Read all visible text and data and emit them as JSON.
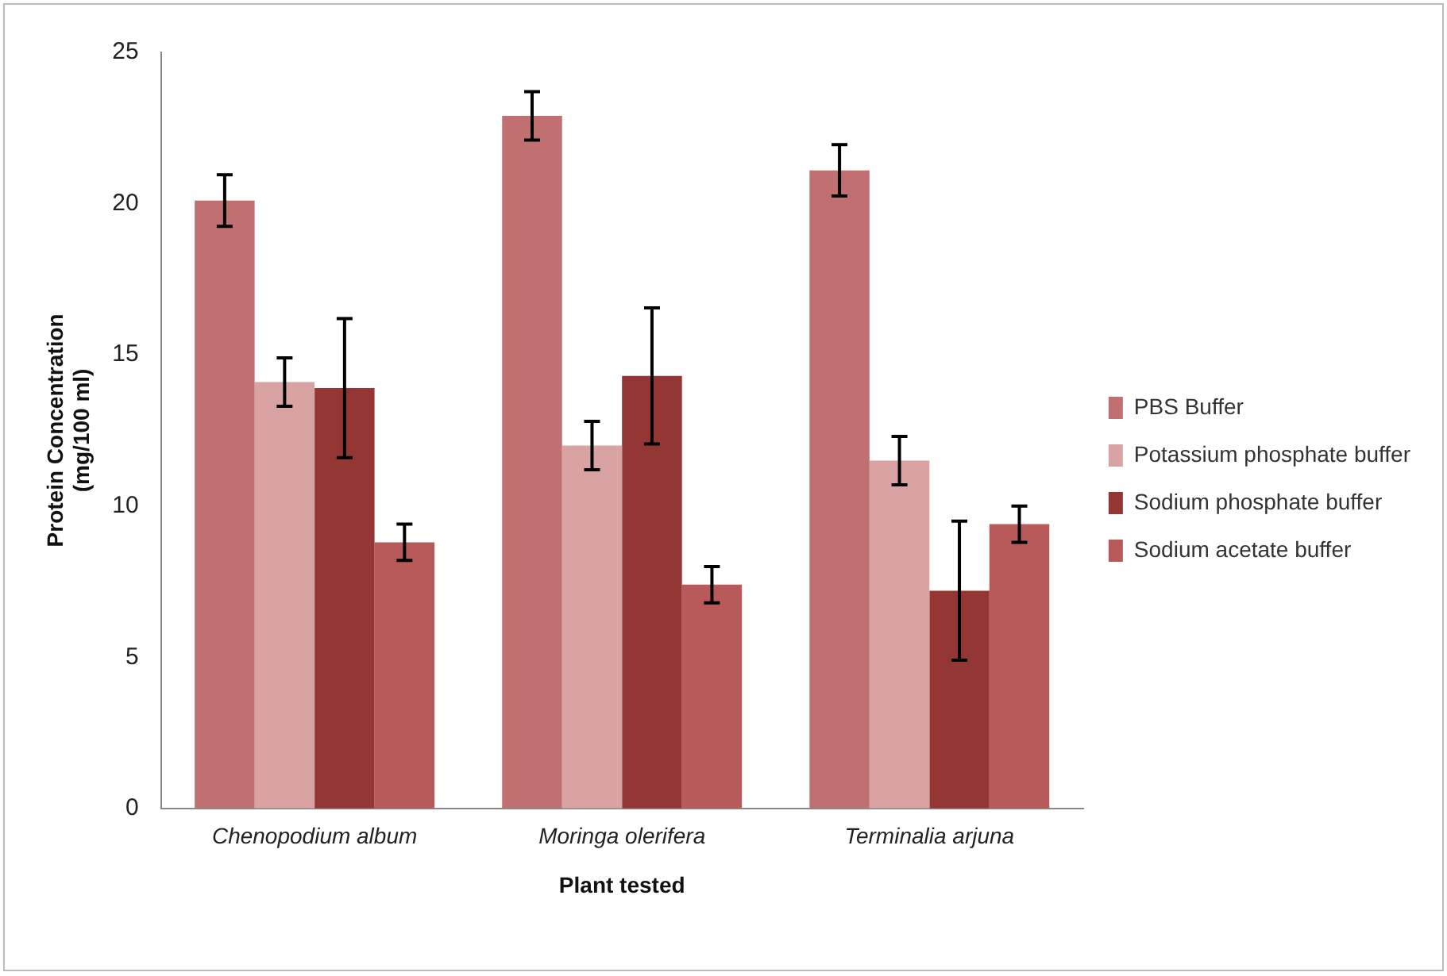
{
  "chart_data": {
    "type": "bar",
    "xlabel": "Plant tested",
    "ylabel": "Protein Concentration\n(mg/100 ml)",
    "categories": [
      "Chenopodium album",
      "Moringa olerifera",
      "Terminalia arjuna"
    ],
    "series": [
      {
        "name": "PBS Buffer",
        "color": "#c07070",
        "values": [
          20.1,
          22.9,
          21.1
        ],
        "errors": [
          0.85,
          0.8,
          0.85
        ]
      },
      {
        "name": "Potassium phosphate buffer",
        "color": "#d9a3a3",
        "values": [
          14.1,
          12.0,
          11.5
        ],
        "errors": [
          0.8,
          0.8,
          0.8
        ]
      },
      {
        "name": "Sodium phosphate buffer",
        "color": "#943634",
        "values": [
          13.9,
          14.3,
          7.2
        ],
        "errors": [
          2.3,
          2.25,
          2.3
        ]
      },
      {
        "name": "Sodium acetate buffer",
        "color": "#b85a5a",
        "values": [
          8.8,
          7.4,
          9.4
        ],
        "errors": [
          0.6,
          0.6,
          0.6
        ]
      }
    ],
    "ylim": [
      0,
      25
    ],
    "yticks": [
      0,
      5,
      10,
      15,
      20,
      25
    ],
    "grid": false,
    "legend": "right"
  }
}
